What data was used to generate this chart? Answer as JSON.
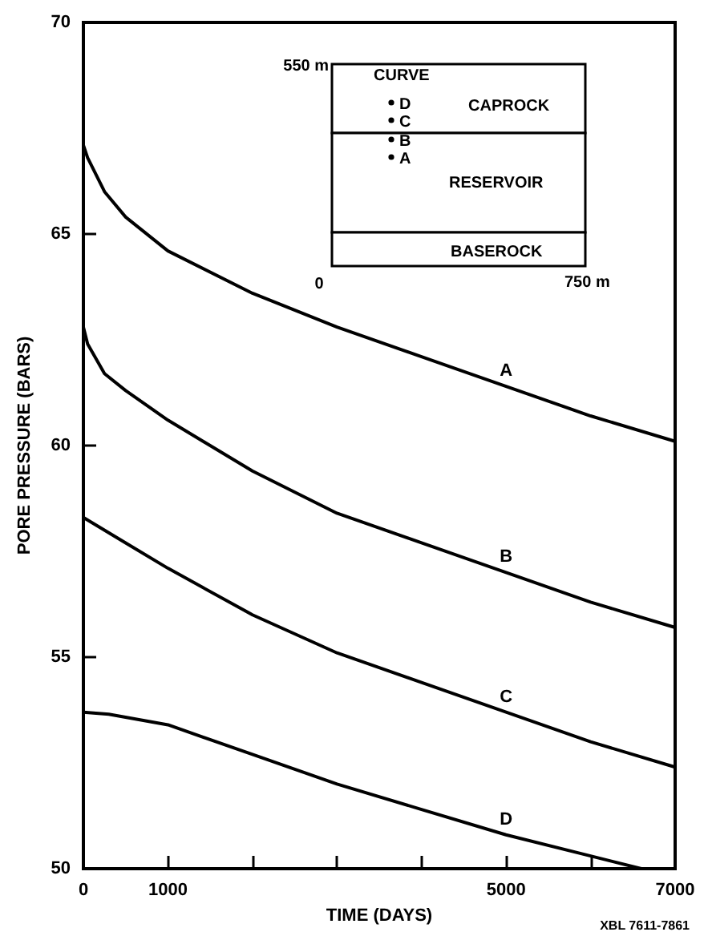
{
  "chart_data": {
    "type": "line",
    "xlabel": "TIME (DAYS)",
    "ylabel": "PORE PRESSURE (BARS)",
    "xlim": [
      0,
      7000
    ],
    "ylim": [
      50,
      70
    ],
    "xticks": [
      0,
      1000,
      {
        "value": 2000,
        "label": null
      },
      {
        "value": 3000,
        "label": null
      },
      {
        "value": 4000,
        "label": null
      },
      5000,
      {
        "value": 6000,
        "label": null
      },
      7000
    ],
    "yticks": [
      50,
      55,
      60,
      65,
      70
    ],
    "grid": false,
    "legend": false,
    "marker": "none",
    "line_style": "solid",
    "series": [
      {
        "name": "A",
        "color": "#000000",
        "x": [
          0,
          50,
          250,
          500,
          1000,
          2000,
          3000,
          4000,
          5000,
          6000,
          7000
        ],
        "values": [
          67.1,
          66.8,
          66.0,
          65.4,
          64.6,
          63.6,
          62.8,
          62.1,
          61.4,
          60.7,
          60.1
        ]
      },
      {
        "name": "B",
        "color": "#000000",
        "x": [
          0,
          50,
          250,
          500,
          1000,
          2000,
          3000,
          4000,
          5000,
          6000,
          7000
        ],
        "values": [
          62.8,
          62.4,
          61.7,
          61.3,
          60.6,
          59.4,
          58.4,
          57.7,
          57.0,
          56.3,
          55.7
        ]
      },
      {
        "name": "C",
        "color": "#000000",
        "x": [
          0,
          500,
          1000,
          2000,
          3000,
          4000,
          5000,
          6000,
          7000
        ],
        "values": [
          58.3,
          57.7,
          57.1,
          56.0,
          55.1,
          54.4,
          53.7,
          53.0,
          52.4
        ]
      },
      {
        "name": "D",
        "color": "#000000",
        "x": [
          0,
          300,
          1000,
          2000,
          3000,
          4000,
          5000,
          6000,
          6600
        ],
        "values": [
          53.7,
          53.65,
          53.4,
          52.7,
          52.0,
          51.4,
          50.8,
          50.3,
          50.0
        ]
      }
    ],
    "annotations": [
      "550 m",
      "CURVE",
      "D",
      "C",
      "B",
      "A",
      "CAPROCK",
      "RESERVOIR",
      "BASEROCK",
      "0",
      "750 m",
      "XBL 7611-7861"
    ]
  }
}
